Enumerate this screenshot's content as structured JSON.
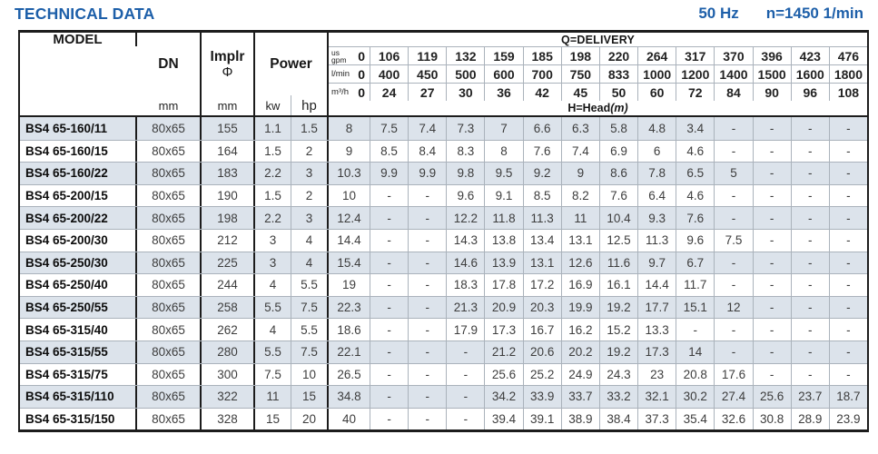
{
  "header": {
    "title": "TECHNICAL DATA",
    "frequency": "50 Hz",
    "speed": "n=1450 1/min"
  },
  "table": {
    "model_header": "MODEL",
    "dn_header": "DN",
    "dn_unit": "mm",
    "impeller_header": "Implr",
    "impeller_symbol": "Φ",
    "impeller_unit": "mm",
    "power_header": "Power",
    "kw_label": "kw",
    "hp_label": "hp",
    "delivery_title": "Q=DELIVERY",
    "head_label": "H=Head",
    "head_unit_suffix": "(m)",
    "delivery_units": [
      {
        "label_line1": "us",
        "label_line2": "gpm",
        "zero": "0",
        "values": [
          "106",
          "119",
          "132",
          "159",
          "185",
          "198",
          "220",
          "264",
          "317",
          "370",
          "396",
          "423",
          "476"
        ]
      },
      {
        "label_line1": "",
        "label_line2": "l/min",
        "zero": "0",
        "values": [
          "400",
          "450",
          "500",
          "600",
          "700",
          "750",
          "833",
          "1000",
          "1200",
          "1400",
          "1500",
          "1600",
          "1800"
        ]
      },
      {
        "label_line1": "",
        "label_line2": "m³/h",
        "zero": "0",
        "values": [
          "24",
          "27",
          "30",
          "36",
          "42",
          "45",
          "50",
          "60",
          "72",
          "84",
          "90",
          "96",
          "108"
        ]
      }
    ],
    "rows": [
      {
        "model": "BS4 65-160/11",
        "dn": "80x65",
        "implr": "155",
        "kw": "1.1",
        "hp": "1.5",
        "head": [
          "8",
          "7.5",
          "7.4",
          "7.3",
          "7",
          "6.6",
          "6.3",
          "5.8",
          "4.8",
          "3.4",
          "-",
          "-",
          "-",
          "-"
        ]
      },
      {
        "model": "BS4 65-160/15",
        "dn": "80x65",
        "implr": "164",
        "kw": "1.5",
        "hp": "2",
        "head": [
          "9",
          "8.5",
          "8.4",
          "8.3",
          "8",
          "7.6",
          "7.4",
          "6.9",
          "6",
          "4.6",
          "-",
          "-",
          "-",
          "-"
        ]
      },
      {
        "model": "BS4 65-160/22",
        "dn": "80x65",
        "implr": "183",
        "kw": "2.2",
        "hp": "3",
        "head": [
          "10.3",
          "9.9",
          "9.9",
          "9.8",
          "9.5",
          "9.2",
          "9",
          "8.6",
          "7.8",
          "6.5",
          "5",
          "-",
          "-",
          "-"
        ]
      },
      {
        "model": "BS4 65-200/15",
        "dn": "80x65",
        "implr": "190",
        "kw": "1.5",
        "hp": "2",
        "head": [
          "10",
          "-",
          "-",
          "9.6",
          "9.1",
          "8.5",
          "8.2",
          "7.6",
          "6.4",
          "4.6",
          "-",
          "-",
          "-",
          "-"
        ]
      },
      {
        "model": "BS4 65-200/22",
        "dn": "80x65",
        "implr": "198",
        "kw": "2.2",
        "hp": "3",
        "head": [
          "12.4",
          "-",
          "-",
          "12.2",
          "11.8",
          "11.3",
          "11",
          "10.4",
          "9.3",
          "7.6",
          "-",
          "-",
          "-",
          "-"
        ]
      },
      {
        "model": "BS4 65-200/30",
        "dn": "80x65",
        "implr": "212",
        "kw": "3",
        "hp": "4",
        "head": [
          "14.4",
          "-",
          "-",
          "14.3",
          "13.8",
          "13.4",
          "13.1",
          "12.5",
          "11.3",
          "9.6",
          "7.5",
          "-",
          "-",
          "-"
        ]
      },
      {
        "model": "BS4 65-250/30",
        "dn": "80x65",
        "implr": "225",
        "kw": "3",
        "hp": "4",
        "head": [
          "15.4",
          "-",
          "-",
          "14.6",
          "13.9",
          "13.1",
          "12.6",
          "11.6",
          "9.7",
          "6.7",
          "-",
          "-",
          "-",
          "-"
        ]
      },
      {
        "model": "BS4 65-250/40",
        "dn": "80x65",
        "implr": "244",
        "kw": "4",
        "hp": "5.5",
        "head": [
          "19",
          "-",
          "-",
          "18.3",
          "17.8",
          "17.2",
          "16.9",
          "16.1",
          "14.4",
          "11.7",
          "-",
          "-",
          "-",
          "-"
        ]
      },
      {
        "model": "BS4 65-250/55",
        "dn": "80x65",
        "implr": "258",
        "kw": "5.5",
        "hp": "7.5",
        "head": [
          "22.3",
          "-",
          "-",
          "21.3",
          "20.9",
          "20.3",
          "19.9",
          "19.2",
          "17.7",
          "15.1",
          "12",
          "-",
          "-",
          "-"
        ]
      },
      {
        "model": "BS4 65-315/40",
        "dn": "80x65",
        "implr": "262",
        "kw": "4",
        "hp": "5.5",
        "head": [
          "18.6",
          "-",
          "-",
          "17.9",
          "17.3",
          "16.7",
          "16.2",
          "15.2",
          "13.3",
          "-",
          "-",
          "-",
          "-",
          "-"
        ]
      },
      {
        "model": "BS4 65-315/55",
        "dn": "80x65",
        "implr": "280",
        "kw": "5.5",
        "hp": "7.5",
        "head": [
          "22.1",
          "-",
          "-",
          "-",
          "21.2",
          "20.6",
          "20.2",
          "19.2",
          "17.3",
          "14",
          "-",
          "-",
          "-",
          "-"
        ]
      },
      {
        "model": "BS4 65-315/75",
        "dn": "80x65",
        "implr": "300",
        "kw": "7.5",
        "hp": "10",
        "head": [
          "26.5",
          "-",
          "-",
          "-",
          "25.6",
          "25.2",
          "24.9",
          "24.3",
          "23",
          "20.8",
          "17.6",
          "-",
          "-",
          "-"
        ]
      },
      {
        "model": "BS4 65-315/110",
        "dn": "80x65",
        "implr": "322",
        "kw": "11",
        "hp": "15",
        "head": [
          "34.8",
          "-",
          "-",
          "-",
          "34.2",
          "33.9",
          "33.7",
          "33.2",
          "32.1",
          "30.2",
          "27.4",
          "25.6",
          "23.7",
          "18.7"
        ]
      },
      {
        "model": "BS4 65-315/150",
        "dn": "80x65",
        "implr": "328",
        "kw": "15",
        "hp": "20",
        "head": [
          "40",
          "-",
          "-",
          "-",
          "39.4",
          "39.1",
          "38.9",
          "38.4",
          "37.3",
          "35.4",
          "32.6",
          "30.8",
          "28.9",
          "23.9"
        ]
      }
    ]
  },
  "colors": {
    "accent_blue": "#1d5fa9",
    "row_shade": "#dce3eb",
    "border_dark": "#1c1c1c",
    "border_light": "#aab2bb"
  }
}
